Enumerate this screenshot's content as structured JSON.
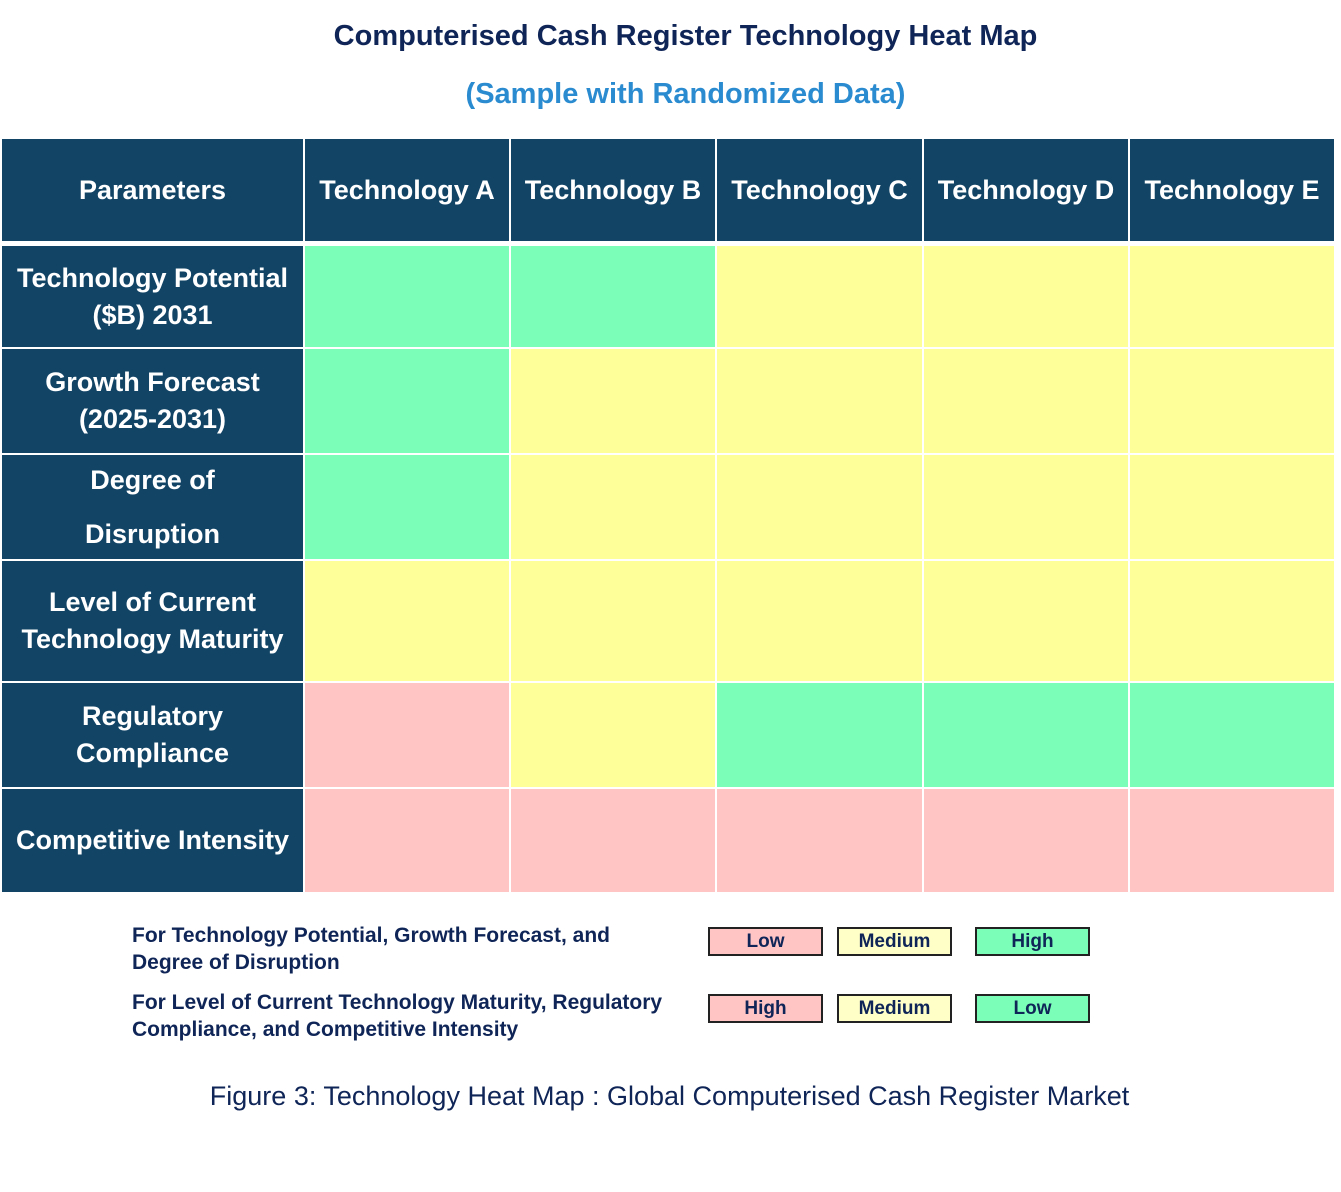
{
  "header": {
    "title": "Computerised Cash Register Technology Heat Map",
    "subtitle": "(Sample with Randomized Data)"
  },
  "table": {
    "columns": [
      "Parameters",
      "Technology A",
      "Technology B",
      "Technology C",
      "Technology D",
      "Technology E"
    ],
    "rows": [
      {
        "label": "Technology Potential ($B) 2031",
        "cells": [
          "#7bffb8",
          "#7bffb8",
          "#ffff99",
          "#ffff99",
          "#ffff99"
        ]
      },
      {
        "label": "Growth Forecast (2025-2031)",
        "cells": [
          "#7bffb8",
          "#ffff99",
          "#ffff99",
          "#ffff99",
          "#ffff99"
        ]
      },
      {
        "label": "Degree of Disruption",
        "cells": [
          "#7bffb8",
          "#ffff99",
          "#ffff99",
          "#ffff99",
          "#ffff99"
        ]
      },
      {
        "label": "Level of Current Technology Maturity",
        "cells": [
          "#ffff99",
          "#ffff99",
          "#ffff99",
          "#ffff99",
          "#ffff99"
        ]
      },
      {
        "label": "Regulatory Compliance",
        "cells": [
          "#ffc4c4",
          "#ffff99",
          "#7bffb8",
          "#7bffb8",
          "#7bffb8"
        ]
      },
      {
        "label": "Competitive Intensity",
        "cells": [
          "#ffc4c4",
          "#ffc4c4",
          "#ffc4c4",
          "#ffc4c4",
          "#ffc4c4"
        ]
      }
    ]
  },
  "legend": [
    {
      "text": "For Technology Potential, Growth Forecast, and Degree of Disruption",
      "items": [
        {
          "label": "Low",
          "color": "#ffc4c4"
        },
        {
          "label": "Medium",
          "color": "#ffffc8"
        },
        {
          "label": "High",
          "color": "#7bffb8"
        }
      ]
    },
    {
      "text": "For Level of Current Technology Maturity, Regulatory Compliance, and Competitive Intensity",
      "items": [
        {
          "label": "High",
          "color": "#ffc4c4"
        },
        {
          "label": "Medium",
          "color": "#ffffc8"
        },
        {
          "label": "Low",
          "color": "#7bffb8"
        }
      ]
    }
  ],
  "caption": "Figure 3: Technology Heat Map : Global Computerised Cash Register Market"
}
